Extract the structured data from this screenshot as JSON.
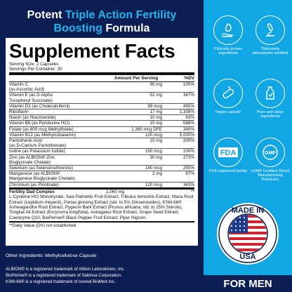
{
  "headline": {
    "line1_plain": "Potent ",
    "line1_accent": "Triple Action Fertility",
    "line2_accent": "Boosting",
    "line2_plain": " Formula"
  },
  "facts": {
    "title": "Supplement Facts",
    "serving_size": "Serving Size: 2 Capsules",
    "servings_per_container": "Servings Per Container: 30",
    "col_amount": "Amount Per Serving",
    "col_dv": "%DV",
    "rows": [
      {
        "name": "Vitamin C\n(as Ascorbic Acid)",
        "amount": "90 mg",
        "dv": "100%"
      },
      {
        "name": "Vitamin E (as D-Alpha\nTocopheryl Succinate)",
        "amount": "52 mg",
        "dv": "347%"
      },
      {
        "name": "Vitamin D3 (as Cholecalciferol)",
        "amount": "99 mcg",
        "dv": "495%"
      },
      {
        "name": "Riboflavin",
        "amount": "17 mg",
        "dv": "1,308%"
      },
      {
        "name": "Niacin (as Niacinamide)",
        "amount": "10 mg",
        "dv": "63%"
      },
      {
        "name": "Vitamin B6 (as Pyridoxine HCl)",
        "amount": "10 mg",
        "dv": "588%"
      },
      {
        "name": "Folate (as 800 mcg Methylfolate)",
        "amount": "1,360 mcg DFE",
        "dv": "340%"
      },
      {
        "name": "Vitamin B12 (as Methylcobalamin)",
        "amount": "120 mcg",
        "dv": "5,000%"
      },
      {
        "name": "Pantothenic Acid\n(as D-Calcium Pantothenate)",
        "amount": "10 mg",
        "dv": "200%"
      },
      {
        "name": "Iodine (as Potassium Iodide)",
        "amount": "150 mcg",
        "dv": "100%"
      },
      {
        "name": "Zinc (as ALBION® Zinc\nBisglycinate Chelate)",
        "amount": "30 mg",
        "dv": "273%"
      },
      {
        "name": "Selenium (as Selenomethionine)",
        "amount": "140 mcg",
        "dv": "255%"
      },
      {
        "name": "Manganese (as ALBION®\nManganese Bisglycinate Chelate)",
        "amount": "2 mg",
        "dv": "87%"
      },
      {
        "name": "Chromium (as Picolinate)",
        "amount": "120 mcg",
        "dv": "343%"
      }
    ],
    "complex_title": "Fertility Dad Complex",
    "complex_amount": "1,060 mg",
    "complex_dv": "**",
    "complex_text": "L-Cysteine HCl Monohyrate, Saw Palmetto Fruit Extract, Tribulus terrestris Extract, Maca Root Extract (Lepidium meyenii), Panax ginseng Extract (std. to 5% Ginsenosides), KSM-66® Ashwagandha Root Extract, Pygeum Bark Extract (Prunus africana; std. to 25% Sterols), Tongkat Ali Extract (Eurycoma longifolia), Astragalus Root Extract, Grape Seed Extract, Coenzyme Q10, BioPerine® Black Pepper Fruit Extract; Piper Nigrum.",
    "dv_note": "**Daily Value (DV) not established"
  },
  "other_ingredients": "Other Ingredients: Methylcellulose Capsule",
  "trademarks": [
    "ALBION® is a registered trademark of Albion Laboratories, Inc.",
    "BioPerine® is a registered trademark of Sabinsa Corporation.",
    "KSM-66® is a registered trademark of Ixoreal BioMed Inc."
  ],
  "features": [
    {
      "icon": "leaf-hand-icon",
      "label": "Clinically proven ingredients"
    },
    {
      "icon": "microscope-icon",
      "label": "Third-party laboratories certified"
    },
    {
      "icon": "vegan-capsule-icon",
      "label": "Vegan capsule"
    },
    {
      "icon": "bottle-icon",
      "label": "Pure and clean ingredients"
    },
    {
      "icon": "fda-icon",
      "label": "FDA registered facility"
    },
    {
      "icon": "gmp-certified-icon",
      "label": "cGMP Certified (Good Manufacturing Practices)"
    }
  ],
  "seal": {
    "top": "MADE IN",
    "bottom": "USA",
    "icon": "usa-flag-seal-icon"
  },
  "for_men": "FOR MEN",
  "colors": {
    "navy": "#0c1e52",
    "accent_blue": "#21b6ef",
    "panel_blue": "#11a6e4"
  }
}
